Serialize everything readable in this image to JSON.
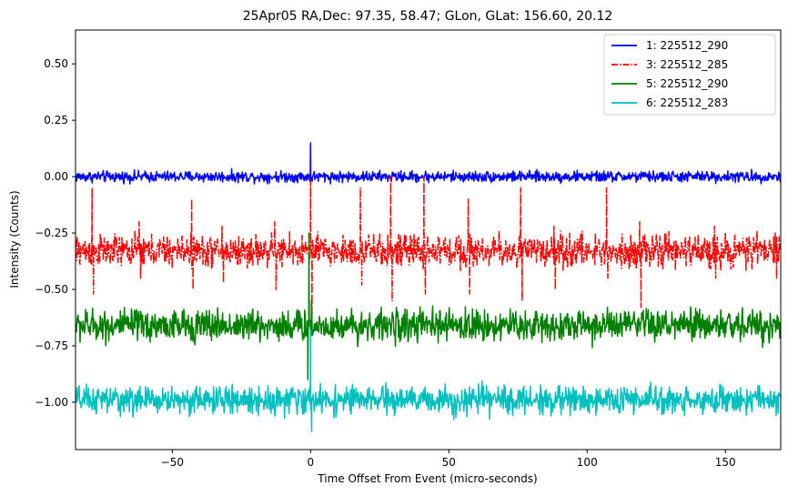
{
  "chart_data": {
    "type": "line",
    "title": "25Apr05 RA,Dec:   97.35,  58.47; GLon, GLat:  156.60,  20.12",
    "xlabel": "Time Offset From Event (micro-seconds)",
    "ylabel": "Intensity (Counts)",
    "xlim": [
      -85,
      170
    ],
    "ylim": [
      -1.21,
      0.65
    ],
    "xticks": [
      -50,
      0,
      50,
      100,
      150
    ],
    "xtick_labels": [
      "−50",
      "0",
      "50",
      "100",
      "150"
    ],
    "yticks": [
      0.5,
      0.25,
      0.0,
      -0.25,
      -0.5,
      -0.75,
      -1.0
    ],
    "ytick_labels": [
      "0.50",
      "0.25",
      "0.00",
      "−0.25",
      "−0.50",
      "−0.75",
      "−1.00"
    ],
    "legend_position": "top-right",
    "series": [
      {
        "name": "1: 225512_290",
        "color": "#0000ff",
        "linestyle": "solid",
        "baseline": 0.0,
        "noise_amplitude": 0.012,
        "spikes": [
          {
            "x": 0.0,
            "y": 0.15
          },
          {
            "x": 0.6,
            "y": -0.02
          }
        ]
      },
      {
        "name": "3: 225512_285",
        "color": "#ff0000",
        "linestyle": "dashdot",
        "baseline": -0.33,
        "noise_amplitude": 0.035,
        "spikes": [
          {
            "x": -79,
            "y": -0.05
          },
          {
            "x": -78.5,
            "y": -0.52
          },
          {
            "x": -62,
            "y": -0.2
          },
          {
            "x": -61.5,
            "y": -0.45
          },
          {
            "x": -43,
            "y": -0.1
          },
          {
            "x": -42.5,
            "y": -0.5
          },
          {
            "x": -32,
            "y": -0.22
          },
          {
            "x": -31.5,
            "y": -0.47
          },
          {
            "x": -13,
            "y": -0.2
          },
          {
            "x": -12.5,
            "y": -0.5
          },
          {
            "x": 0,
            "y": -0.02
          },
          {
            "x": 0.5,
            "y": -0.62
          },
          {
            "x": 18,
            "y": -0.05
          },
          {
            "x": 18.5,
            "y": -0.48
          },
          {
            "x": 29,
            "y": 0.0
          },
          {
            "x": 29.5,
            "y": -0.55
          },
          {
            "x": 41,
            "y": 0.0
          },
          {
            "x": 41.5,
            "y": -0.52
          },
          {
            "x": 57,
            "y": -0.1
          },
          {
            "x": 57.5,
            "y": -0.52
          },
          {
            "x": 76,
            "y": -0.05
          },
          {
            "x": 76.5,
            "y": -0.55
          },
          {
            "x": 88,
            "y": -0.22
          },
          {
            "x": 88.5,
            "y": -0.5
          },
          {
            "x": 107,
            "y": -0.05
          },
          {
            "x": 107.5,
            "y": -0.45
          },
          {
            "x": 119,
            "y": -0.2
          },
          {
            "x": 119.5,
            "y": -0.58
          },
          {
            "x": 146,
            "y": -0.22
          },
          {
            "x": 146.5,
            "y": -0.45
          },
          {
            "x": 168,
            "y": -0.25
          },
          {
            "x": 168.5,
            "y": -0.45
          }
        ]
      },
      {
        "name": "5: 225512_290",
        "color": "#008000",
        "linestyle": "solid",
        "baseline": -0.66,
        "noise_amplitude": 0.035,
        "spikes": [
          {
            "x": -0.6,
            "y": -0.25
          },
          {
            "x": -1.0,
            "y": -0.9
          },
          {
            "x": 0.3,
            "y": -0.55
          }
        ]
      },
      {
        "name": "6: 225512_283",
        "color": "#00bfbf",
        "linestyle": "solid",
        "baseline": -0.99,
        "noise_amplitude": 0.03,
        "spikes": [
          {
            "x": 0.0,
            "y": -0.68
          },
          {
            "x": 0.4,
            "y": -1.13
          }
        ]
      }
    ]
  }
}
